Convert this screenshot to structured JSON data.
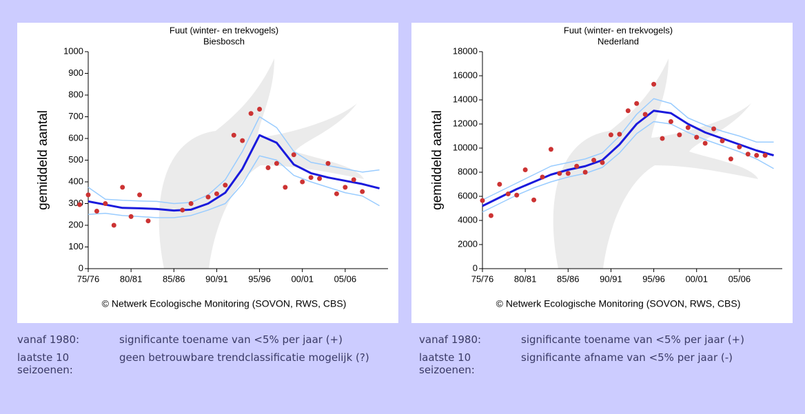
{
  "chart_data": [
    {
      "type": "line",
      "title": "Fuut (winter- en trekvogels)",
      "subtitle": "Biesbosch",
      "y_label": "gemiddeld aantal",
      "source": "© Netwerk Ecologische Monitoring (SOVON, RWS, CBS)",
      "xlim": [
        1975,
        2010
      ],
      "ylim": [
        0,
        1000
      ],
      "xticks": [
        {
          "value": 1975,
          "label": "75/76"
        },
        {
          "value": 1980,
          "label": "80/81"
        },
        {
          "value": 1985,
          "label": "85/86"
        },
        {
          "value": 1990,
          "label": "90/91"
        },
        {
          "value": 1995,
          "label": "95/96"
        },
        {
          "value": 2000,
          "label": "00/01"
        },
        {
          "value": 2005,
          "label": "05/06"
        }
      ],
      "yticks": [
        0,
        100,
        200,
        300,
        400,
        500,
        600,
        700,
        800,
        900,
        1000
      ],
      "series": [
        {
          "color": "#99ccff",
          "x": [
            1975,
            1977,
            1979,
            1981,
            1983,
            1985,
            1987,
            1989,
            1991,
            1993,
            1995,
            1997,
            1999,
            2001,
            2003,
            2005,
            2007,
            2009
          ],
          "values": [
            375,
            320,
            315,
            312,
            310,
            300,
            305,
            340,
            410,
            540,
            700,
            650,
            540,
            490,
            475,
            460,
            445,
            455
          ]
        },
        {
          "color": "#99ccff",
          "x": [
            1975,
            1977,
            1979,
            1981,
            1983,
            1985,
            1987,
            1989,
            1991,
            1993,
            1995,
            1997,
            1999,
            2001,
            2003,
            2005,
            2007,
            2009
          ],
          "values": [
            250,
            255,
            245,
            240,
            235,
            235,
            245,
            270,
            300,
            390,
            520,
            500,
            430,
            400,
            375,
            350,
            335,
            290
          ]
        },
        {
          "color": "#1a1adc",
          "x": [
            1975,
            1977,
            1979,
            1981,
            1983,
            1985,
            1987,
            1989,
            1991,
            1993,
            1995,
            1997,
            1999,
            2001,
            2003,
            2005,
            2007,
            2009
          ],
          "values": [
            310,
            295,
            280,
            278,
            275,
            268,
            272,
            300,
            350,
            460,
            615,
            580,
            480,
            440,
            420,
            405,
            390,
            370
          ]
        },
        {
          "color": "#cc3333",
          "marker": "dot",
          "x": [
            1974,
            1975,
            1976,
            1977,
            1978,
            1979,
            1980,
            1981,
            1982,
            1986,
            1987,
            1989,
            1990,
            1991,
            1992,
            1993,
            1994,
            1995,
            1996,
            1997,
            1998,
            1999,
            2000,
            2001,
            2002,
            2003,
            2004,
            2005,
            2006,
            2007
          ],
          "values": [
            295,
            340,
            265,
            300,
            200,
            375,
            240,
            340,
            220,
            270,
            300,
            330,
            345,
            385,
            615,
            590,
            715,
            735,
            465,
            485,
            375,
            525,
            400,
            420,
            415,
            485,
            345,
            375,
            410,
            355
          ]
        }
      ]
    },
    {
      "type": "line",
      "title": "Fuut (winter- en trekvogels)",
      "subtitle": "Nederland",
      "y_label": "gemiddeld aantal",
      "source": "© Netwerk Ecologische Monitoring (SOVON, RWS, CBS)",
      "xlim": [
        1975,
        2010
      ],
      "ylim": [
        0,
        18000
      ],
      "xticks": [
        {
          "value": 1975,
          "label": "75/76"
        },
        {
          "value": 1980,
          "label": "80/81"
        },
        {
          "value": 1985,
          "label": "85/86"
        },
        {
          "value": 1990,
          "label": "90/91"
        },
        {
          "value": 1995,
          "label": "95/96"
        },
        {
          "value": 2000,
          "label": "00/01"
        },
        {
          "value": 2005,
          "label": "05/06"
        }
      ],
      "yticks": [
        0,
        2000,
        4000,
        6000,
        8000,
        10000,
        12000,
        14000,
        16000,
        18000
      ],
      "series": [
        {
          "color": "#99ccff",
          "x": [
            1975,
            1977,
            1979,
            1981,
            1983,
            1985,
            1987,
            1989,
            1991,
            1993,
            1995,
            1997,
            1999,
            2001,
            2003,
            2005,
            2007,
            2009
          ],
          "values": [
            5700,
            6400,
            7100,
            7800,
            8500,
            8800,
            9100,
            9600,
            11000,
            12800,
            14100,
            13700,
            12500,
            11900,
            11400,
            11000,
            10500,
            10500
          ]
        },
        {
          "color": "#99ccff",
          "x": [
            1975,
            1977,
            1979,
            1981,
            1983,
            1985,
            1987,
            1989,
            1991,
            1993,
            1995,
            1997,
            1999,
            2001,
            2003,
            2005,
            2007,
            2009
          ],
          "values": [
            4700,
            5400,
            6100,
            6700,
            7200,
            7600,
            7900,
            8400,
            9600,
            11200,
            12200,
            12000,
            11300,
            10700,
            10200,
            9700,
            9100,
            8300
          ]
        },
        {
          "color": "#1a1adc",
          "x": [
            1975,
            1977,
            1979,
            1981,
            1983,
            1985,
            1987,
            1989,
            1991,
            1993,
            1995,
            1997,
            1999,
            2001,
            2003,
            2005,
            2007,
            2009
          ],
          "values": [
            5200,
            5900,
            6600,
            7200,
            7800,
            8200,
            8500,
            9000,
            10300,
            12000,
            13100,
            12900,
            12000,
            11300,
            10800,
            10300,
            9800,
            9400
          ]
        },
        {
          "color": "#cc3333",
          "marker": "dot",
          "x": [
            1975,
            1976,
            1977,
            1978,
            1979,
            1980,
            1981,
            1982,
            1983,
            1984,
            1985,
            1986,
            1987,
            1988,
            1989,
            1990,
            1991,
            1992,
            1993,
            1994,
            1995,
            1996,
            1997,
            1998,
            1999,
            2000,
            2001,
            2002,
            2003,
            2004,
            2005,
            2006,
            2007,
            2008
          ],
          "values": [
            5650,
            4400,
            7000,
            6200,
            6100,
            8200,
            5700,
            7600,
            9900,
            7900,
            7900,
            8500,
            8000,
            9000,
            8800,
            11100,
            11150,
            13100,
            13700,
            12800,
            15300,
            10800,
            12200,
            11100,
            11700,
            10900,
            10400,
            11600,
            10600,
            9100,
            10100,
            9500,
            9400,
            9400
          ]
        }
      ]
    }
  ],
  "trends": [
    {
      "rows": [
        {
          "label": "vanaf 1980:",
          "text": "significante toename van <5% per jaar (+)"
        },
        {
          "label": "laatste 10 seizoenen:",
          "text": "geen betrouwbare trendclassificatie mogelijk (?)"
        }
      ]
    },
    {
      "rows": [
        {
          "label": "vanaf 1980:",
          "text": "significante toename van <5% per jaar (+)"
        },
        {
          "label": "laatste 10 seizoenen:",
          "text": "significante afname van <5% per jaar (-)"
        }
      ]
    }
  ]
}
